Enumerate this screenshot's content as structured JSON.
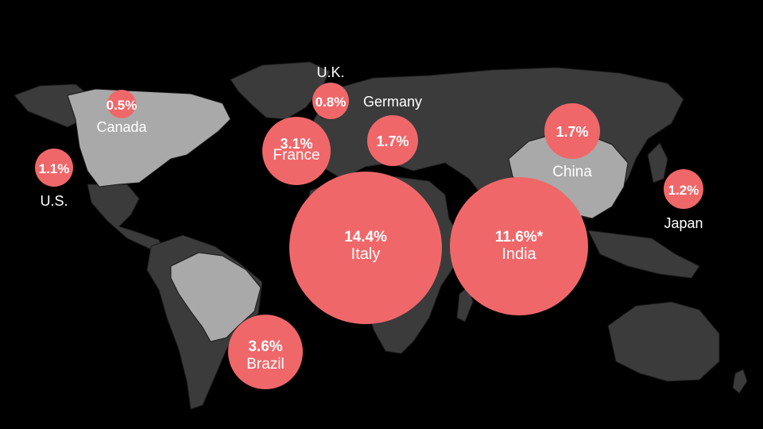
{
  "colors": {
    "background": "#000000",
    "land": "#3b3b3b",
    "highlight_land": "#a9a9a9",
    "bubble": "#f0676a",
    "text": "#ffffff"
  },
  "markers": [
    {
      "id": "us",
      "name": "U.S.",
      "value": "1.1%"
    },
    {
      "id": "canada",
      "name": "Canada",
      "value": "0.5%"
    },
    {
      "id": "uk",
      "name": "U.K.",
      "value": "0.8%"
    },
    {
      "id": "germany",
      "name": "Germany",
      "value": "1.7%"
    },
    {
      "id": "france",
      "name": "France",
      "value": "3.1%"
    },
    {
      "id": "china",
      "name": "China",
      "value": "1.7%"
    },
    {
      "id": "japan",
      "name": "Japan",
      "value": "1.2%"
    },
    {
      "id": "italy",
      "name": "Italy",
      "value": "14.4%"
    },
    {
      "id": "india",
      "name": "India",
      "value": "11.6%*"
    },
    {
      "id": "brazil",
      "name": "Brazil",
      "value": "3.6%"
    }
  ]
}
